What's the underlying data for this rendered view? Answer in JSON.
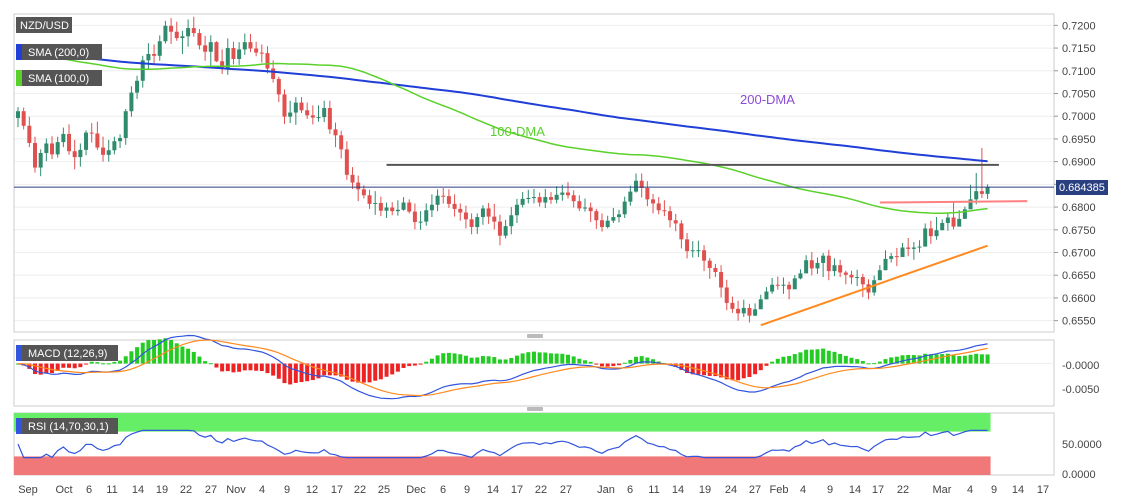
{
  "chart_data": [
    {
      "type": "candlestick",
      "symbol": "NZD/USD",
      "ylim": [
        0.6525,
        0.7225
      ],
      "yticks": [
        0.72,
        0.715,
        0.71,
        0.705,
        0.7,
        0.695,
        0.69,
        0.685,
        0.68,
        0.675,
        0.67,
        0.665,
        0.66,
        0.655
      ],
      "last_price": "0.684385",
      "x_labels": [
        "Sep",
        "Oct",
        "6",
        "11",
        "14",
        "19",
        "22",
        "27",
        "Nov",
        "4",
        "9",
        "12",
        "17",
        "22",
        "25",
        "Dec",
        "6",
        "9",
        "14",
        "17",
        "22",
        "27",
        "Jan",
        "6",
        "11",
        "14",
        "19",
        "24",
        "27",
        "Feb",
        "4",
        "9",
        "14",
        "17",
        "22",
        "Mar",
        "4",
        "9",
        "14",
        "17"
      ],
      "series": [
        {
          "name": "SMA (200,0)",
          "color": "#1f3fd6"
        },
        {
          "name": "SMA (100,0)",
          "color": "#5ad12a"
        }
      ],
      "annotations": [
        {
          "text": "200-DMA",
          "color": "#8a4bd6"
        },
        {
          "text": "100-DMA",
          "color": "#5ad12a"
        }
      ],
      "horizontal_lines": [
        {
          "value": 0.6893,
          "color": "#555555"
        },
        {
          "value": 0.681,
          "color": "#ff8080"
        }
      ],
      "trendline": {
        "from": {
          "index": 131,
          "value": 0.654
        },
        "to": {
          "index": 171,
          "value": 0.6715
        },
        "color": "#ff8a1f"
      },
      "candles": {
        "open": [
          0.6996,
          0.7011,
          0.6979,
          0.6941,
          0.6887,
          0.6919,
          0.694,
          0.6916,
          0.6943,
          0.6961,
          0.6923,
          0.691,
          0.6926,
          0.6964,
          0.6962,
          0.6931,
          0.6915,
          0.6925,
          0.6945,
          0.6952,
          0.7011,
          0.7052,
          0.7078,
          0.7123,
          0.7137,
          0.7133,
          0.7165,
          0.7199,
          0.7186,
          0.7172,
          0.7176,
          0.7194,
          0.7183,
          0.7156,
          0.7142,
          0.7163,
          0.7121,
          0.7105,
          0.715,
          0.7126,
          0.7147,
          0.7163,
          0.7149,
          0.714,
          0.7139,
          0.7105,
          0.7082,
          0.7048,
          0.6999,
          0.7008,
          0.703,
          0.7013,
          0.7002,
          0.6997,
          0.6998,
          0.7018,
          0.6971,
          0.6958,
          0.6927,
          0.6871,
          0.6854,
          0.6839,
          0.6826,
          0.6807,
          0.6809,
          0.6792,
          0.6799,
          0.6791,
          0.6794,
          0.681,
          0.679,
          0.6767,
          0.6768,
          0.6793,
          0.6805,
          0.6825,
          0.6824,
          0.6807,
          0.6796,
          0.6788,
          0.6773,
          0.6756,
          0.6778,
          0.6797,
          0.6779,
          0.6768,
          0.6737,
          0.6758,
          0.6782,
          0.6805,
          0.6818,
          0.682,
          0.6822,
          0.681,
          0.6822,
          0.6816,
          0.6827,
          0.6832,
          0.6826,
          0.6813,
          0.6797,
          0.6799,
          0.6791,
          0.6771,
          0.6756,
          0.677,
          0.6778,
          0.6784,
          0.6812,
          0.6834,
          0.6858,
          0.6842,
          0.6817,
          0.6808,
          0.6793,
          0.6791,
          0.6771,
          0.6764,
          0.6729,
          0.6703,
          0.6705,
          0.6705,
          0.6682,
          0.6666,
          0.6657,
          0.6623,
          0.6589,
          0.6576,
          0.6566,
          0.6578,
          0.6561,
          0.6575,
          0.6597,
          0.6614,
          0.6629,
          0.6627,
          0.6629,
          0.6619,
          0.6643,
          0.6654,
          0.6683,
          0.6665,
          0.6677,
          0.6693,
          0.6659,
          0.6672,
          0.6656,
          0.6651,
          0.6645,
          0.6646,
          0.663,
          0.6612,
          0.6639,
          0.6661,
          0.6686,
          0.6692,
          0.669,
          0.6711,
          0.6708,
          0.6711,
          0.6713,
          0.6753,
          0.6736,
          0.6749,
          0.6765,
          0.6777,
          0.6757,
          0.6774,
          0.6795,
          0.6817,
          0.6835,
          0.6829
        ],
        "high": [
          0.702,
          0.7019,
          0.6999,
          0.6955,
          0.6927,
          0.6951,
          0.6956,
          0.6955,
          0.6975,
          0.6982,
          0.6948,
          0.694,
          0.6969,
          0.6985,
          0.6988,
          0.6955,
          0.6948,
          0.6955,
          0.696,
          0.7016,
          0.7066,
          0.7089,
          0.7133,
          0.7161,
          0.7158,
          0.7178,
          0.721,
          0.7216,
          0.7208,
          0.7188,
          0.7213,
          0.7219,
          0.7192,
          0.7177,
          0.7178,
          0.7165,
          0.7147,
          0.7171,
          0.7164,
          0.7163,
          0.7182,
          0.7181,
          0.7164,
          0.7158,
          0.7154,
          0.7123,
          0.7087,
          0.7059,
          0.7034,
          0.7042,
          0.7042,
          0.703,
          0.7024,
          0.7024,
          0.7034,
          0.7034,
          0.6986,
          0.6968,
          0.6945,
          0.6888,
          0.6869,
          0.6848,
          0.6838,
          0.6835,
          0.6823,
          0.681,
          0.6811,
          0.6815,
          0.6822,
          0.6817,
          0.6808,
          0.6791,
          0.6808,
          0.6828,
          0.6839,
          0.6842,
          0.6839,
          0.6828,
          0.6808,
          0.6803,
          0.6786,
          0.6786,
          0.6804,
          0.6809,
          0.6807,
          0.6783,
          0.6772,
          0.68,
          0.6818,
          0.6833,
          0.6838,
          0.684,
          0.6832,
          0.684,
          0.6833,
          0.6846,
          0.6849,
          0.6855,
          0.6837,
          0.6826,
          0.6819,
          0.681,
          0.6796,
          0.6786,
          0.6781,
          0.6798,
          0.6794,
          0.6823,
          0.6847,
          0.6874,
          0.6874,
          0.6857,
          0.6829,
          0.6822,
          0.6815,
          0.6802,
          0.6785,
          0.6771,
          0.6743,
          0.6725,
          0.6726,
          0.6716,
          0.6688,
          0.6675,
          0.6672,
          0.664,
          0.6603,
          0.6594,
          0.6596,
          0.6587,
          0.6588,
          0.6607,
          0.6624,
          0.6644,
          0.6647,
          0.6645,
          0.6636,
          0.665,
          0.6663,
          0.6694,
          0.6701,
          0.6689,
          0.6699,
          0.6706,
          0.6687,
          0.6684,
          0.666,
          0.666,
          0.6662,
          0.6653,
          0.6641,
          0.6649,
          0.6672,
          0.6705,
          0.6699,
          0.671,
          0.6721,
          0.6732,
          0.6723,
          0.6727,
          0.6764,
          0.677,
          0.6778,
          0.6773,
          0.6787,
          0.6813,
          0.6793,
          0.6801,
          0.6849,
          0.6875,
          0.693,
          0.685
        ],
        "low": [
          0.6976,
          0.6971,
          0.6932,
          0.6876,
          0.6868,
          0.6901,
          0.6906,
          0.6909,
          0.6932,
          0.6915,
          0.6883,
          0.6889,
          0.6914,
          0.6942,
          0.6926,
          0.69,
          0.69,
          0.6916,
          0.693,
          0.6937,
          0.6999,
          0.7038,
          0.7063,
          0.7104,
          0.7115,
          0.7122,
          0.716,
          0.7159,
          0.7166,
          0.7137,
          0.7153,
          0.7175,
          0.7147,
          0.7122,
          0.7111,
          0.7119,
          0.7093,
          0.7091,
          0.7114,
          0.7113,
          0.7135,
          0.7141,
          0.7132,
          0.7118,
          0.7094,
          0.7074,
          0.7031,
          0.6983,
          0.6985,
          0.6981,
          0.7007,
          0.6994,
          0.6982,
          0.6988,
          0.6987,
          0.6961,
          0.6932,
          0.6907,
          0.686,
          0.684,
          0.6813,
          0.6819,
          0.6796,
          0.6783,
          0.678,
          0.6776,
          0.6782,
          0.6781,
          0.6792,
          0.6786,
          0.6751,
          0.675,
          0.6759,
          0.6778,
          0.6791,
          0.6808,
          0.6798,
          0.6779,
          0.677,
          0.6753,
          0.674,
          0.6741,
          0.6761,
          0.6763,
          0.6751,
          0.6716,
          0.6731,
          0.674,
          0.6765,
          0.6799,
          0.6808,
          0.6808,
          0.6801,
          0.6798,
          0.6807,
          0.6808,
          0.6814,
          0.6819,
          0.6799,
          0.6791,
          0.679,
          0.6767,
          0.6752,
          0.6746,
          0.6753,
          0.6765,
          0.6766,
          0.6776,
          0.6803,
          0.6832,
          0.6821,
          0.6802,
          0.6786,
          0.6784,
          0.678,
          0.6755,
          0.6747,
          0.6709,
          0.6687,
          0.6689,
          0.669,
          0.6659,
          0.6642,
          0.6646,
          0.6601,
          0.6573,
          0.6567,
          0.655,
          0.6558,
          0.6546,
          0.656,
          0.658,
          0.6597,
          0.6609,
          0.6618,
          0.6609,
          0.6597,
          0.6622,
          0.6641,
          0.6655,
          0.665,
          0.6653,
          0.6646,
          0.6639,
          0.6648,
          0.6646,
          0.663,
          0.663,
          0.6626,
          0.6602,
          0.6597,
          0.6605,
          0.6645,
          0.6661,
          0.6678,
          0.667,
          0.6695,
          0.6692,
          0.6684,
          0.67,
          0.6721,
          0.6719,
          0.6728,
          0.6749,
          0.6748,
          0.6751,
          0.6771,
          0.6788,
          0.6802,
          0.6806,
          0.682,
          0.6818
        ],
        "close": [
          0.7011,
          0.6979,
          0.6941,
          0.6887,
          0.6919,
          0.694,
          0.6916,
          0.6943,
          0.6961,
          0.6923,
          0.691,
          0.6926,
          0.6964,
          0.6962,
          0.6931,
          0.6915,
          0.6925,
          0.6945,
          0.6952,
          0.7011,
          0.7052,
          0.7078,
          0.7123,
          0.7137,
          0.7133,
          0.7165,
          0.7199,
          0.7186,
          0.7172,
          0.7176,
          0.7194,
          0.7183,
          0.7156,
          0.7142,
          0.7163,
          0.7121,
          0.7105,
          0.715,
          0.7126,
          0.7147,
          0.7163,
          0.7149,
          0.714,
          0.7139,
          0.7105,
          0.7082,
          0.7048,
          0.6999,
          0.7008,
          0.703,
          0.7013,
          0.7002,
          0.6997,
          0.6998,
          0.7018,
          0.6971,
          0.6958,
          0.6927,
          0.6871,
          0.6854,
          0.6839,
          0.6826,
          0.6807,
          0.6809,
          0.6792,
          0.6799,
          0.6791,
          0.6794,
          0.681,
          0.679,
          0.6767,
          0.6768,
          0.6793,
          0.6805,
          0.6825,
          0.6824,
          0.6807,
          0.6796,
          0.6788,
          0.6773,
          0.6756,
          0.6778,
          0.6797,
          0.6779,
          0.6768,
          0.6737,
          0.6758,
          0.6782,
          0.6805,
          0.6818,
          0.682,
          0.6822,
          0.681,
          0.6822,
          0.6816,
          0.6827,
          0.6832,
          0.6826,
          0.6813,
          0.6797,
          0.6799,
          0.6791,
          0.6771,
          0.6756,
          0.677,
          0.6778,
          0.6784,
          0.6812,
          0.6834,
          0.6858,
          0.6842,
          0.6817,
          0.6808,
          0.6793,
          0.6791,
          0.6771,
          0.6764,
          0.6729,
          0.6703,
          0.6705,
          0.6705,
          0.6682,
          0.6666,
          0.6657,
          0.6623,
          0.6589,
          0.6576,
          0.6566,
          0.6578,
          0.6561,
          0.6575,
          0.6597,
          0.6614,
          0.6629,
          0.6627,
          0.6629,
          0.6619,
          0.6643,
          0.6654,
          0.6683,
          0.6665,
          0.6677,
          0.6693,
          0.6659,
          0.6672,
          0.6656,
          0.6651,
          0.6645,
          0.6646,
          0.663,
          0.6612,
          0.6639,
          0.6661,
          0.6686,
          0.6692,
          0.669,
          0.6711,
          0.6708,
          0.6711,
          0.6713,
          0.6753,
          0.6736,
          0.6749,
          0.6765,
          0.6777,
          0.6757,
          0.6774,
          0.6795,
          0.6817,
          0.6835,
          0.6829,
          0.6844
        ]
      }
    },
    {
      "type": "bar",
      "name": "MACD (12,26,9)",
      "yticks": [
        "-0.0000",
        "-0.0050"
      ],
      "ylim": [
        -0.009,
        0.005
      ],
      "colors": {
        "positive": "#22cc22",
        "negative": "#ee2222",
        "macd": "#3355dd",
        "signal": "#ff8a1f"
      }
    },
    {
      "type": "line",
      "name": "RSI (14,70,30,1)",
      "yticks": [
        "50.0000",
        "0.0000"
      ],
      "ylim": [
        0,
        100
      ],
      "zones": {
        "overbought": 70,
        "oversold": 30
      },
      "colors": {
        "line": "#3355dd",
        "overbought": "#66ee66",
        "oversold": "#f07878"
      }
    }
  ]
}
